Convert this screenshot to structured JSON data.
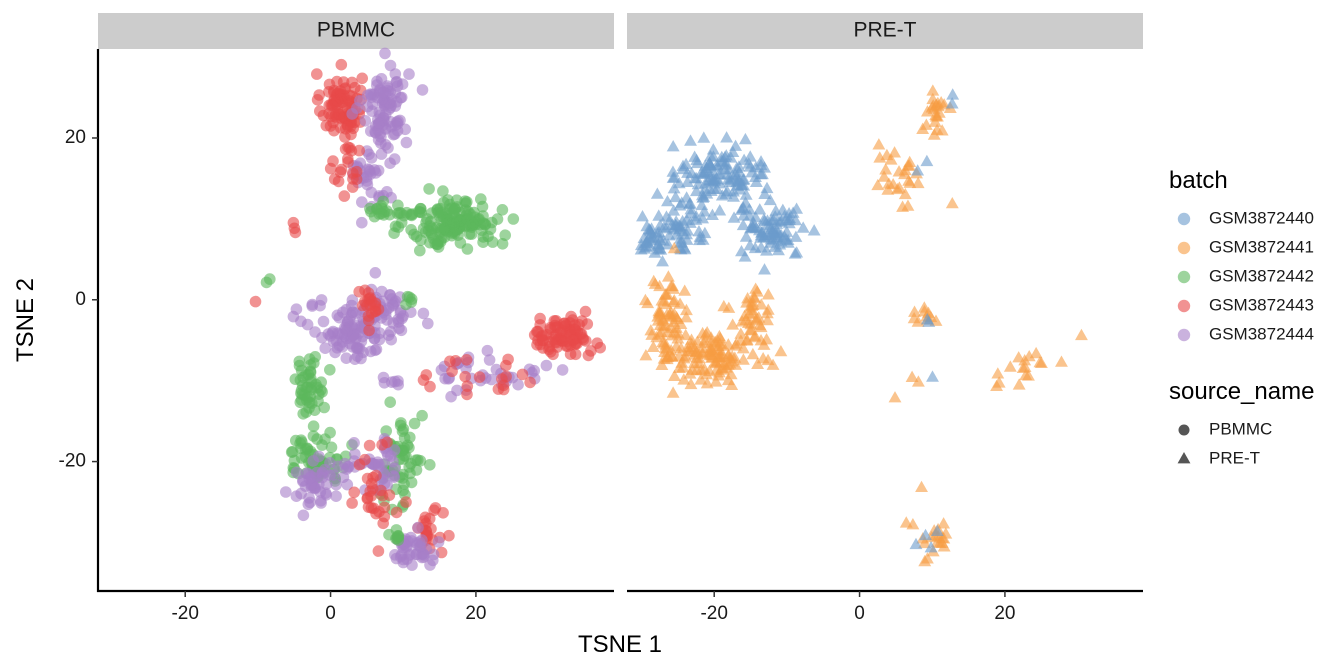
{
  "chart_data": {
    "type": "scatter",
    "facets": [
      "PBMMC",
      "PRE-T"
    ],
    "xlabel": "TSNE 1",
    "ylabel": "TSNE 2",
    "xlim": [
      -32,
      39
    ],
    "ylim": [
      -36,
      31
    ],
    "xticks": [
      -20,
      0,
      20
    ],
    "yticks": [
      -20,
      0,
      20
    ],
    "xtick_labels": [
      "-20",
      "0",
      "20"
    ],
    "ytick_labels": [
      "-20",
      "0",
      "20"
    ],
    "point_alpha": 0.6,
    "legend": {
      "position": "right",
      "color_title": "batch",
      "color_entries": [
        {
          "label": "GSM3872440",
          "color": "#6A9BCB"
        },
        {
          "label": "GSM3872441",
          "color": "#F79C43"
        },
        {
          "label": "GSM3872442",
          "color": "#5CB85C"
        },
        {
          "label": "GSM3872443",
          "color": "#E84A4A"
        },
        {
          "label": "GSM3872444",
          "color": "#A77EC8"
        }
      ],
      "shape_title": "source_name",
      "shape_entries": [
        {
          "label": "PBMMC",
          "shape": "circle"
        },
        {
          "label": "PRE-T",
          "shape": "triangle"
        }
      ]
    },
    "panels": [
      {
        "facet": "PBMMC",
        "shape": "circle",
        "clusters": [
          {
            "series": "GSM3872443",
            "cx": 1.5,
            "cy": 24,
            "sx": 1.4,
            "sy": 2.0,
            "n": 90
          },
          {
            "series": "GSM3872444",
            "cx": 7.5,
            "cy": 24,
            "sx": 1.6,
            "sy": 2.5,
            "n": 90
          },
          {
            "series": "GSM3872444",
            "cx": 5.5,
            "cy": 15.5,
            "sx": 1.6,
            "sy": 2.8,
            "n": 35
          },
          {
            "series": "GSM3872443",
            "cx": 2.5,
            "cy": 16,
            "sx": 1.0,
            "sy": 2.0,
            "n": 20
          },
          {
            "series": "GSM3872442",
            "cx": 17,
            "cy": 9.5,
            "sx": 3.2,
            "sy": 1.5,
            "n": 150
          },
          {
            "series": "GSM3872442",
            "cx": 9,
            "cy": 11,
            "sx": 2.2,
            "sy": 0.6,
            "n": 22
          },
          {
            "series": "GSM3872443",
            "cx": -5,
            "cy": 9,
            "sx": 0.5,
            "sy": 0.5,
            "n": 3
          },
          {
            "series": "GSM3872442",
            "cx": -8.5,
            "cy": 2.5,
            "sx": 0.2,
            "sy": 0.2,
            "n": 2
          },
          {
            "series": "GSM3872443",
            "cx": -10.5,
            "cy": 0,
            "sx": 0.2,
            "sy": 0.2,
            "n": 1
          },
          {
            "series": "GSM3872444",
            "cx": 3,
            "cy": -4,
            "sx": 3.0,
            "sy": 1.8,
            "n": 90
          },
          {
            "series": "GSM3872444",
            "cx": 7.5,
            "cy": -1.5,
            "sx": 2.0,
            "sy": 1.6,
            "n": 45
          },
          {
            "series": "GSM3872443",
            "cx": 5.5,
            "cy": -0.5,
            "sx": 1.0,
            "sy": 1.0,
            "n": 20
          },
          {
            "series": "GSM3872442",
            "cx": 11,
            "cy": 0,
            "sx": 0.6,
            "sy": 0.3,
            "n": 5
          },
          {
            "series": "GSM3872442",
            "cx": -3,
            "cy": -10.5,
            "sx": 1.0,
            "sy": 1.8,
            "n": 45
          },
          {
            "series": "GSM3872443",
            "cx": 32,
            "cy": -4.5,
            "sx": 2.2,
            "sy": 1.2,
            "n": 80
          },
          {
            "series": "GSM3872444",
            "cx": 22,
            "cy": -9,
            "sx": 3.5,
            "sy": 1.2,
            "n": 35
          },
          {
            "series": "GSM3872443",
            "cx": 21,
            "cy": -9.5,
            "sx": 4.0,
            "sy": 1.2,
            "n": 20
          },
          {
            "series": "GSM3872444",
            "cx": 8.5,
            "cy": -10,
            "sx": 1.0,
            "sy": 0.5,
            "n": 6
          },
          {
            "series": "GSM3872442",
            "cx": -2,
            "cy": -19.5,
            "sx": 2.2,
            "sy": 1.5,
            "n": 60
          },
          {
            "series": "GSM3872444",
            "cx": -2,
            "cy": -23,
            "sx": 1.8,
            "sy": 1.3,
            "n": 40
          },
          {
            "series": "GSM3872444",
            "cx": 2.5,
            "cy": -20.5,
            "sx": 2.0,
            "sy": 1.0,
            "n": 18
          },
          {
            "series": "GSM3872442",
            "cx": 10,
            "cy": -20,
            "sx": 1.4,
            "sy": 3.0,
            "n": 55
          },
          {
            "series": "GSM3872444",
            "cx": 7,
            "cy": -21,
            "sx": 1.2,
            "sy": 2.2,
            "n": 28
          },
          {
            "series": "GSM3872443",
            "cx": 6,
            "cy": -23,
            "sx": 1.5,
            "sy": 3.0,
            "n": 22
          },
          {
            "series": "GSM3872443",
            "cx": 13.5,
            "cy": -28.5,
            "sx": 1.0,
            "sy": 1.2,
            "n": 22
          },
          {
            "series": "GSM3872444",
            "cx": 11,
            "cy": -31,
            "sx": 1.5,
            "sy": 1.2,
            "n": 42
          },
          {
            "series": "GSM3872442",
            "cx": 9,
            "cy": -30,
            "sx": 1.0,
            "sy": 0.8,
            "n": 8
          },
          {
            "series": "GSM3872443",
            "cx": 7,
            "cy": -25.5,
            "sx": 1.0,
            "sy": 1.5,
            "n": 8
          }
        ]
      },
      {
        "facet": "PRE-T",
        "shape": "triangle",
        "clusters": [
          {
            "series": "GSM3872440",
            "cx": -19,
            "cy": 15.5,
            "sx": 3.0,
            "sy": 2.0,
            "n": 120
          },
          {
            "series": "GSM3872440",
            "cx": -25,
            "cy": 9,
            "sx": 2.5,
            "sy": 1.8,
            "n": 70
          },
          {
            "series": "GSM3872440",
            "cx": -12,
            "cy": 8.5,
            "sx": 2.2,
            "sy": 1.6,
            "n": 80
          },
          {
            "series": "GSM3872440",
            "cx": -29,
            "cy": 6.5,
            "sx": 0.8,
            "sy": 0.8,
            "n": 14
          },
          {
            "series": "GSM3872441",
            "cx": -26.5,
            "cy": -3,
            "sx": 1.5,
            "sy": 2.8,
            "n": 70
          },
          {
            "series": "GSM3872441",
            "cx": -20,
            "cy": -7,
            "sx": 3.0,
            "sy": 1.4,
            "n": 110
          },
          {
            "series": "GSM3872441",
            "cx": -15,
            "cy": -2.5,
            "sx": 1.4,
            "sy": 2.5,
            "n": 40
          },
          {
            "series": "GSM3872441",
            "cx": 10.5,
            "cy": 23,
            "sx": 0.8,
            "sy": 1.5,
            "n": 22
          },
          {
            "series": "GSM3872440",
            "cx": 12.8,
            "cy": 24.8,
            "sx": 0.3,
            "sy": 0.3,
            "n": 2
          },
          {
            "series": "GSM3872441",
            "cx": 6,
            "cy": 15,
            "sx": 1.3,
            "sy": 2.0,
            "n": 22
          },
          {
            "series": "GSM3872441",
            "cx": 3.5,
            "cy": 18,
            "sx": 0.8,
            "sy": 1.0,
            "n": 4
          },
          {
            "series": "GSM3872440",
            "cx": 8,
            "cy": 16.5,
            "sx": 0.4,
            "sy": 0.4,
            "n": 2
          },
          {
            "series": "GSM3872441",
            "cx": 12.8,
            "cy": 11.6,
            "sx": 0.2,
            "sy": 0.2,
            "n": 1
          },
          {
            "series": "GSM3872441",
            "cx": 9,
            "cy": -2,
            "sx": 0.9,
            "sy": 0.6,
            "n": 10
          },
          {
            "series": "GSM3872440",
            "cx": 9.3,
            "cy": -2.8,
            "sx": 0.3,
            "sy": 0.3,
            "n": 2
          },
          {
            "series": "GSM3872441",
            "cx": 7.5,
            "cy": -10,
            "sx": 0.5,
            "sy": 0.3,
            "n": 2
          },
          {
            "series": "GSM3872440",
            "cx": 9.8,
            "cy": -9.4,
            "sx": 0.2,
            "sy": 0.2,
            "n": 1
          },
          {
            "series": "GSM3872441",
            "cx": 5,
            "cy": -12.2,
            "sx": 0.2,
            "sy": 0.2,
            "n": 1
          },
          {
            "series": "GSM3872441",
            "cx": 23,
            "cy": -8,
            "sx": 1.8,
            "sy": 0.8,
            "n": 12
          },
          {
            "series": "GSM3872441",
            "cx": 18.8,
            "cy": -10,
            "sx": 0.5,
            "sy": 0.6,
            "n": 3
          },
          {
            "series": "GSM3872441",
            "cx": 22,
            "cy": -10.5,
            "sx": 0.3,
            "sy": 0.3,
            "n": 1
          },
          {
            "series": "GSM3872441",
            "cx": 30.5,
            "cy": -4.3,
            "sx": 0.2,
            "sy": 0.2,
            "n": 1
          },
          {
            "series": "GSM3872441",
            "cx": 8.5,
            "cy": -23,
            "sx": 0.2,
            "sy": 0.2,
            "n": 1
          },
          {
            "series": "GSM3872441",
            "cx": 10.5,
            "cy": -30,
            "sx": 1.5,
            "sy": 1.5,
            "n": 20
          },
          {
            "series": "GSM3872440",
            "cx": 9.5,
            "cy": -30.5,
            "sx": 1.0,
            "sy": 1.0,
            "n": 4
          }
        ]
      }
    ]
  }
}
